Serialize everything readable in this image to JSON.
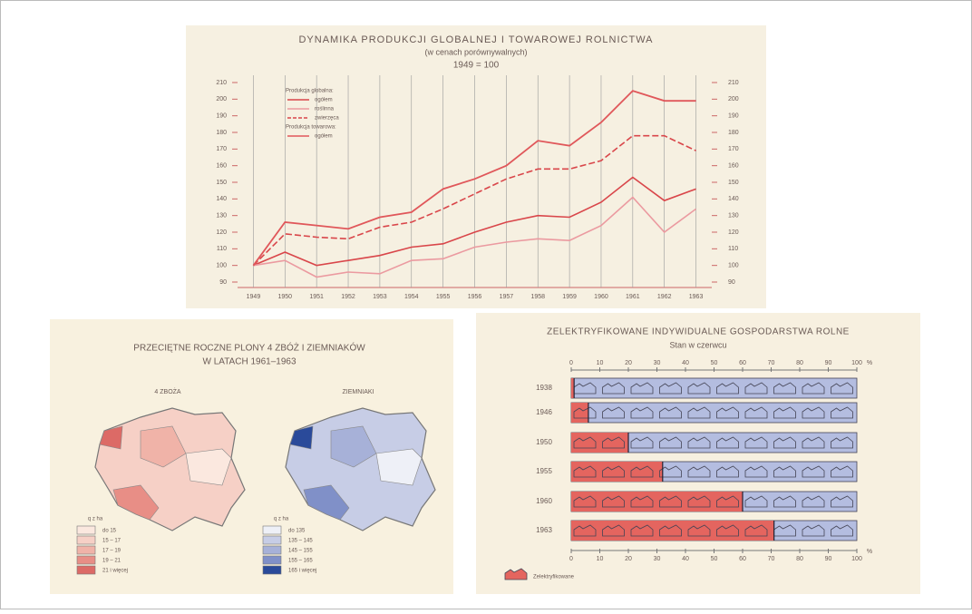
{
  "chart_data": [
    {
      "type": "line",
      "title": "DYNAMIKA PRODUKCJI GLOBALNEJ I TOWAROWEJ ROLNICTWA",
      "subtitle": "(w cenach porównywalnych)",
      "base_note": "1949 = 100",
      "legend_groups": [
        "Produkcja globalna:",
        "Produkcja towarowa:"
      ],
      "x": [
        1949,
        1950,
        1951,
        1952,
        1953,
        1954,
        1955,
        1956,
        1957,
        1958,
        1959,
        1960,
        1961,
        1962,
        1963
      ],
      "xlim": [
        1948.5,
        1963.5
      ],
      "xticks": [
        1949,
        1950,
        1951,
        1952,
        1953,
        1954,
        1955,
        1956,
        1957,
        1958,
        1959,
        1960,
        1961,
        1962,
        1963
      ],
      "ylim": [
        90,
        210
      ],
      "yticks": [
        90,
        100,
        110,
        120,
        130,
        140,
        150,
        160,
        170,
        180,
        190,
        200,
        210
      ],
      "grid": true,
      "series": [
        {
          "name": "ogółem",
          "color": "#d9464a",
          "style": "solid",
          "values": [
            100,
            108,
            100,
            103,
            106,
            111,
            113,
            120,
            126,
            130,
            129,
            138,
            153,
            139,
            146
          ]
        },
        {
          "name": "roślinna",
          "color": "#eb9aa0",
          "style": "solid",
          "values": [
            100,
            103,
            93,
            96,
            95,
            103,
            104,
            111,
            114,
            116,
            115,
            124,
            141,
            120,
            134
          ]
        },
        {
          "name": "zwierzęca",
          "color": "#d9464a",
          "style": "dashed",
          "values": [
            100,
            119,
            117,
            116,
            123,
            126,
            134,
            143,
            152,
            158,
            158,
            163,
            178,
            178,
            169
          ]
        },
        {
          "name": "ogółem",
          "color": "#e0575a",
          "style": "solid",
          "values": [
            100,
            126,
            124,
            122,
            129,
            132,
            146,
            152,
            160,
            175,
            172,
            186,
            205,
            199,
            199
          ]
        }
      ]
    },
    {
      "type": "bar",
      "title": "ZELEKTRYFIKOWANE INDYWIDUALNE GOSPODARSTWA ROLNE",
      "subtitle": "Stan w czerwcu",
      "categories": [
        "1938",
        "1946",
        "1950",
        "1955",
        "1960",
        "1963"
      ],
      "values": [
        1,
        6,
        20,
        32,
        60,
        71
      ],
      "color": "#e4655f",
      "rest_color": "#b4bde0",
      "xlim": [
        0,
        100
      ],
      "xticks": [
        0,
        10,
        20,
        30,
        40,
        50,
        60,
        70,
        80,
        90,
        100
      ],
      "unit": "%",
      "legend": "Zelektryfikowane"
    }
  ],
  "map": {
    "title": [
      "PRZECIĘTNE ROCZNE PLONY 4 ZBÓŻ I ZIEMNIAKÓW",
      "W LATACH 1961–1963"
    ],
    "unit": "q z ha",
    "wheat": {
      "label": "4 ZBOŻA",
      "legend": [
        "do 15",
        "15 – 17",
        "17 – 19",
        "19 – 21",
        "21 i więcej"
      ]
    },
    "potatoes": {
      "label": "ZIEMNIAKI",
      "legend": [
        "do 135",
        "135 – 145",
        "145 – 155",
        "155 – 165",
        "165 i więcej"
      ]
    }
  }
}
